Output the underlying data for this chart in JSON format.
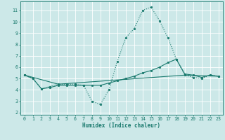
{
  "xlabel": "Humidex (Indice chaleur)",
  "bg_color": "#cce8e8",
  "grid_color": "#ffffff",
  "line_color": "#1a7a6e",
  "xlim": [
    -0.5,
    23.5
  ],
  "ylim": [
    1.8,
    11.8
  ],
  "yticks": [
    2,
    3,
    4,
    5,
    6,
    7,
    8,
    9,
    10,
    11
  ],
  "xticks": [
    0,
    1,
    2,
    3,
    4,
    5,
    6,
    7,
    8,
    9,
    10,
    11,
    12,
    13,
    14,
    15,
    16,
    17,
    18,
    19,
    20,
    21,
    22,
    23
  ],
  "line1_x": [
    0,
    1,
    2,
    3,
    4,
    5,
    6,
    7,
    8,
    9,
    10,
    11,
    12,
    13,
    14,
    15,
    16,
    17,
    18,
    19,
    20,
    21,
    22,
    23
  ],
  "line1_y": [
    5.3,
    5.0,
    4.1,
    4.3,
    4.5,
    4.5,
    4.5,
    4.4,
    3.0,
    2.7,
    4.0,
    6.5,
    8.6,
    9.4,
    11.0,
    11.3,
    10.1,
    8.6,
    6.7,
    5.3,
    5.1,
    5.0,
    5.3,
    5.2
  ],
  "line2_x": [
    0,
    1,
    2,
    3,
    4,
    5,
    6,
    7,
    8,
    9,
    10,
    11,
    12,
    13,
    14,
    15,
    16,
    17,
    18,
    19,
    20,
    21,
    22,
    23
  ],
  "line2_y": [
    5.3,
    5.0,
    4.1,
    4.2,
    4.4,
    4.4,
    4.4,
    4.4,
    4.4,
    4.4,
    4.6,
    4.8,
    5.0,
    5.2,
    5.5,
    5.7,
    6.0,
    6.4,
    6.7,
    5.4,
    5.3,
    5.1,
    5.3,
    5.2
  ],
  "line3_x": [
    0,
    4,
    19,
    23
  ],
  "line3_y": [
    5.3,
    4.5,
    5.3,
    5.2
  ]
}
